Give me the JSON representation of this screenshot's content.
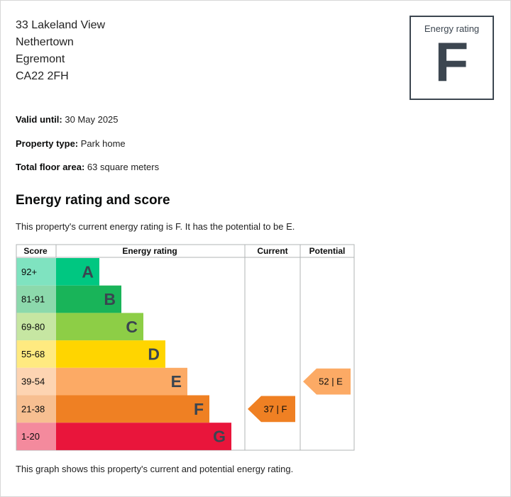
{
  "address": [
    "33 Lakeland View",
    "Nethertown",
    "Egremont",
    "CA22 2FH"
  ],
  "rating_box": {
    "label": "Energy rating",
    "value": "F"
  },
  "details": [
    {
      "label": "Valid until:",
      "value": "30 May 2025"
    },
    {
      "label": "Property type:",
      "value": "Park home"
    },
    {
      "label": "Total floor area:",
      "value": "63 square meters"
    }
  ],
  "section_title": "Energy rating and score",
  "intro": "This property's current energy rating is F. It has the potential to be E.",
  "footer": "This graph shows this property's current and potential energy rating.",
  "table": {
    "headers": [
      "Score",
      "Energy rating",
      "Current",
      "Potential"
    ],
    "bands": [
      {
        "score": "92+",
        "letter": "A",
        "color": "#00c781",
        "score_color": "#7fe3c0"
      },
      {
        "score": "81-91",
        "letter": "B",
        "color": "#19b459",
        "score_color": "#8cd9ac"
      },
      {
        "score": "69-80",
        "letter": "C",
        "color": "#8dce46",
        "score_color": "#c6e6a2"
      },
      {
        "score": "55-68",
        "letter": "D",
        "color": "#ffd500",
        "score_color": "#ffea80"
      },
      {
        "score": "39-54",
        "letter": "E",
        "color": "#fcaa65",
        "score_color": "#fdd4b2"
      },
      {
        "score": "21-38",
        "letter": "F",
        "color": "#ef8023",
        "score_color": "#f7bf91"
      },
      {
        "score": "1-20",
        "letter": "G",
        "color": "#e9153b",
        "score_color": "#f48a9d"
      }
    ],
    "current": {
      "label": "37 | F",
      "band": "F",
      "color": "#ef8023"
    },
    "potential": {
      "label": "52 | E",
      "band": "E",
      "color": "#fcaa65"
    }
  }
}
